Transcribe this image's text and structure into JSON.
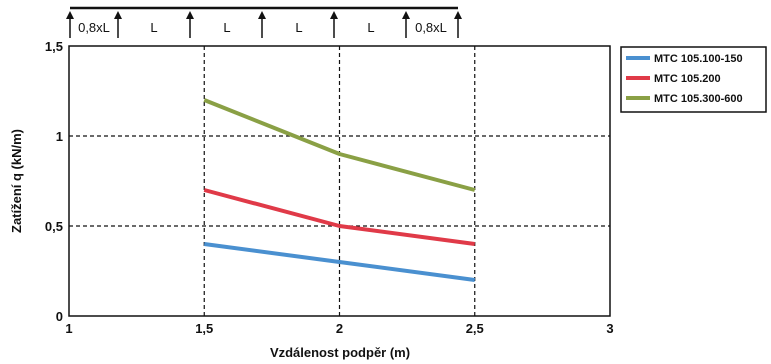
{
  "chart_data": {
    "type": "line",
    "title": "",
    "xlabel": "Vzdálenost podpěr (m)",
    "ylabel": "Zatížení q (kN/m)",
    "xlim": [
      1,
      3
    ],
    "ylim": [
      0,
      1.5
    ],
    "x_ticks": [
      "1",
      "1,5",
      "2",
      "2,5",
      "3"
    ],
    "y_ticks": [
      "0",
      "0,5",
      "1",
      "1,5"
    ],
    "grid": "dashed at x=1.5, 2, 2.5 and y=0.5, 1",
    "legend_position": "right",
    "x": [
      1.5,
      2,
      2.5
    ],
    "series": [
      {
        "name": "MTC 105.100-150",
        "color": "#4a90d0",
        "values": [
          0.4,
          0.3,
          0.2
        ]
      },
      {
        "name": "MTC 105.200",
        "color": "#e03a48",
        "values": [
          0.7,
          0.5,
          0.4
        ]
      },
      {
        "name": "MTC 105.300-600",
        "color": "#8aa045",
        "values": [
          1.2,
          0.9,
          0.7
        ]
      }
    ]
  },
  "beam_diagram": {
    "labels": [
      "0,8xL",
      "L",
      "L",
      "L",
      "L",
      "0,8xL"
    ]
  }
}
